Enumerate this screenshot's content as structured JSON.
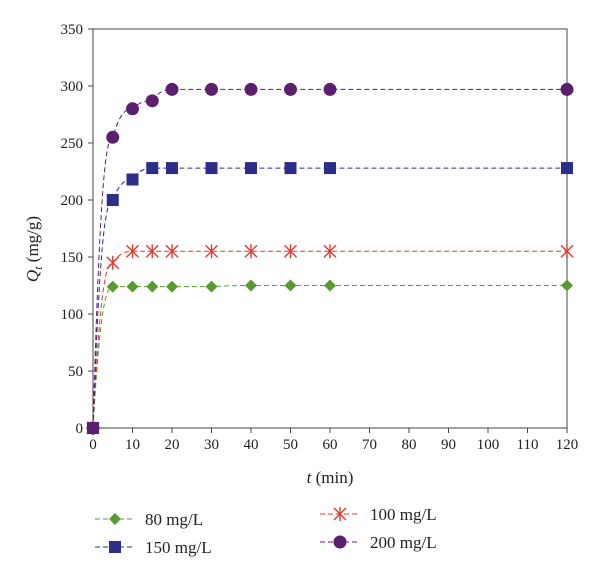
{
  "chart_data": {
    "type": "scatter",
    "xlabel": {
      "var": "t",
      "unit": " (min)"
    },
    "ylabel": {
      "var": "Q",
      "sub": "t",
      "unit": " (mg/g)"
    },
    "xlim": [
      0,
      120
    ],
    "ylim": [
      0,
      350
    ],
    "xticks": [
      "0",
      "10",
      "20",
      "30",
      "40",
      "50",
      "60",
      "70",
      "80",
      "90",
      "100",
      "110",
      "120"
    ],
    "yticks": [
      "0",
      "50",
      "100",
      "150",
      "200",
      "250",
      "300",
      "350"
    ],
    "grid": false,
    "legend_position": "bottom",
    "series": [
      {
        "name": "80 mg/L",
        "color": "#5a9a32",
        "marker": "diamond",
        "x": [
          0,
          5,
          10,
          15,
          20,
          30,
          40,
          50,
          60,
          120
        ],
        "y": [
          0,
          124,
          124,
          124,
          124,
          124,
          125,
          125,
          125,
          125
        ]
      },
      {
        "name": "100 mg/L",
        "color": "#e03a2f",
        "marker": "asterisk",
        "x": [
          0,
          5,
          10,
          15,
          20,
          30,
          40,
          50,
          60,
          120
        ],
        "y": [
          0,
          145,
          155,
          155,
          155,
          155,
          155,
          155,
          155,
          155
        ]
      },
      {
        "name": "150 mg/L",
        "color": "#2e2d8a",
        "marker": "square",
        "x": [
          0,
          5,
          10,
          15,
          20,
          30,
          40,
          50,
          60,
          120
        ],
        "y": [
          0,
          200,
          218,
          228,
          228,
          228,
          228,
          228,
          228,
          228
        ]
      },
      {
        "name": "200 mg/L",
        "color": "#5c1f6e",
        "marker": "circle",
        "x": [
          0,
          5,
          10,
          15,
          20,
          30,
          40,
          50,
          60,
          120
        ],
        "y": [
          0,
          255,
          280,
          287,
          297,
          297,
          297,
          297,
          297,
          297
        ]
      }
    ]
  }
}
